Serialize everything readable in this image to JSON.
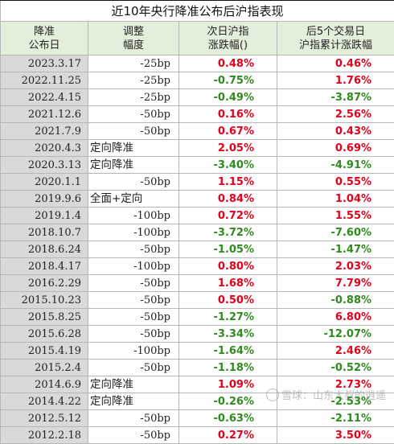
{
  "title": "近10年央行降准公布后沪指表现",
  "headers": {
    "col1": [
      "降准",
      "公布日"
    ],
    "col2": [
      "调整",
      "幅度"
    ],
    "col3": [
      "次日沪指",
      "涨跌幅()"
    ],
    "col4": [
      "后5个交易日",
      "沪指累计涨跌幅"
    ]
  },
  "rows": [
    {
      "date": "2023.3.17",
      "cut": "-25bp",
      "next": "0.48%",
      "five": "0.46%"
    },
    {
      "date": "2022.11.25",
      "cut": "-25bp",
      "next": "-0.75%",
      "five": "1.76%"
    },
    {
      "date": "2022.4.15",
      "cut": "-25bp",
      "next": "-0.49%",
      "five": "-3.87%"
    },
    {
      "date": "2021.12.6",
      "cut": "-50bp",
      "next": "0.16%",
      "five": "2.56%"
    },
    {
      "date": "2021.7.9",
      "cut": "-50bp",
      "next": "0.67%",
      "five": "0.43%"
    },
    {
      "date": "2020.4.3",
      "cut": "定向降准",
      "next": "2.05%",
      "five": "0.69%"
    },
    {
      "date": "2020.3.13",
      "cut": "定向降准",
      "next": "-3.40%",
      "five": "-4.91%"
    },
    {
      "date": "2020.1.1",
      "cut": "-50bp",
      "next": "1.15%",
      "five": "0.55%"
    },
    {
      "date": "2019.9.6",
      "cut": "全面+定向",
      "next": "0.84%",
      "five": "1.04%"
    },
    {
      "date": "2019.1.4",
      "cut": "-100bp",
      "next": "0.72%",
      "five": "1.55%"
    },
    {
      "date": "2018.10.7",
      "cut": "-100bp",
      "next": "-3.72%",
      "five": "-7.60%"
    },
    {
      "date": "2018.6.24",
      "cut": "-50bp",
      "next": "-1.05%",
      "five": "-1.47%"
    },
    {
      "date": "2018.4.17",
      "cut": "-100bp",
      "next": "0.80%",
      "five": "2.03%"
    },
    {
      "date": "2016.2.29",
      "cut": "-50bp",
      "next": "1.68%",
      "five": "7.79%"
    },
    {
      "date": "2015.10.23",
      "cut": "-50bp",
      "next": "0.50%",
      "five": "-0.88%"
    },
    {
      "date": "2015.8.25",
      "cut": "-50bp",
      "next": "-1.27%",
      "five": "6.80%"
    },
    {
      "date": "2015.6.28",
      "cut": "-50bp",
      "next": "-3.34%",
      "five": "-12.07%"
    },
    {
      "date": "2015.4.19",
      "cut": "-100bp",
      "next": "-1.64%",
      "five": "2.46%"
    },
    {
      "date": "2015.2.4",
      "cut": "-50bp",
      "next": "-1.18%",
      "five": "-0.52%"
    },
    {
      "date": "2014.6.9",
      "cut": "定向降准",
      "next": "1.09%",
      "five": "2.73%"
    },
    {
      "date": "2014.4.22",
      "cut": "定向降准",
      "next": "-0.26%",
      "five": "-2.53%"
    },
    {
      "date": "2012.5.12",
      "cut": "-50bp",
      "next": "-0.63%",
      "five": "-2.11%"
    },
    {
      "date": "2012.2.18",
      "cut": "-50bp",
      "next": "0.27%",
      "five": "3.50%"
    }
  ],
  "colors": {
    "positive": "#e3001b",
    "negative": "#2e8b1d",
    "date_bg": "#d9d9d9",
    "header_bg": "#e3efdb"
  },
  "watermark": "雪球：山东大叔的逍遥"
}
